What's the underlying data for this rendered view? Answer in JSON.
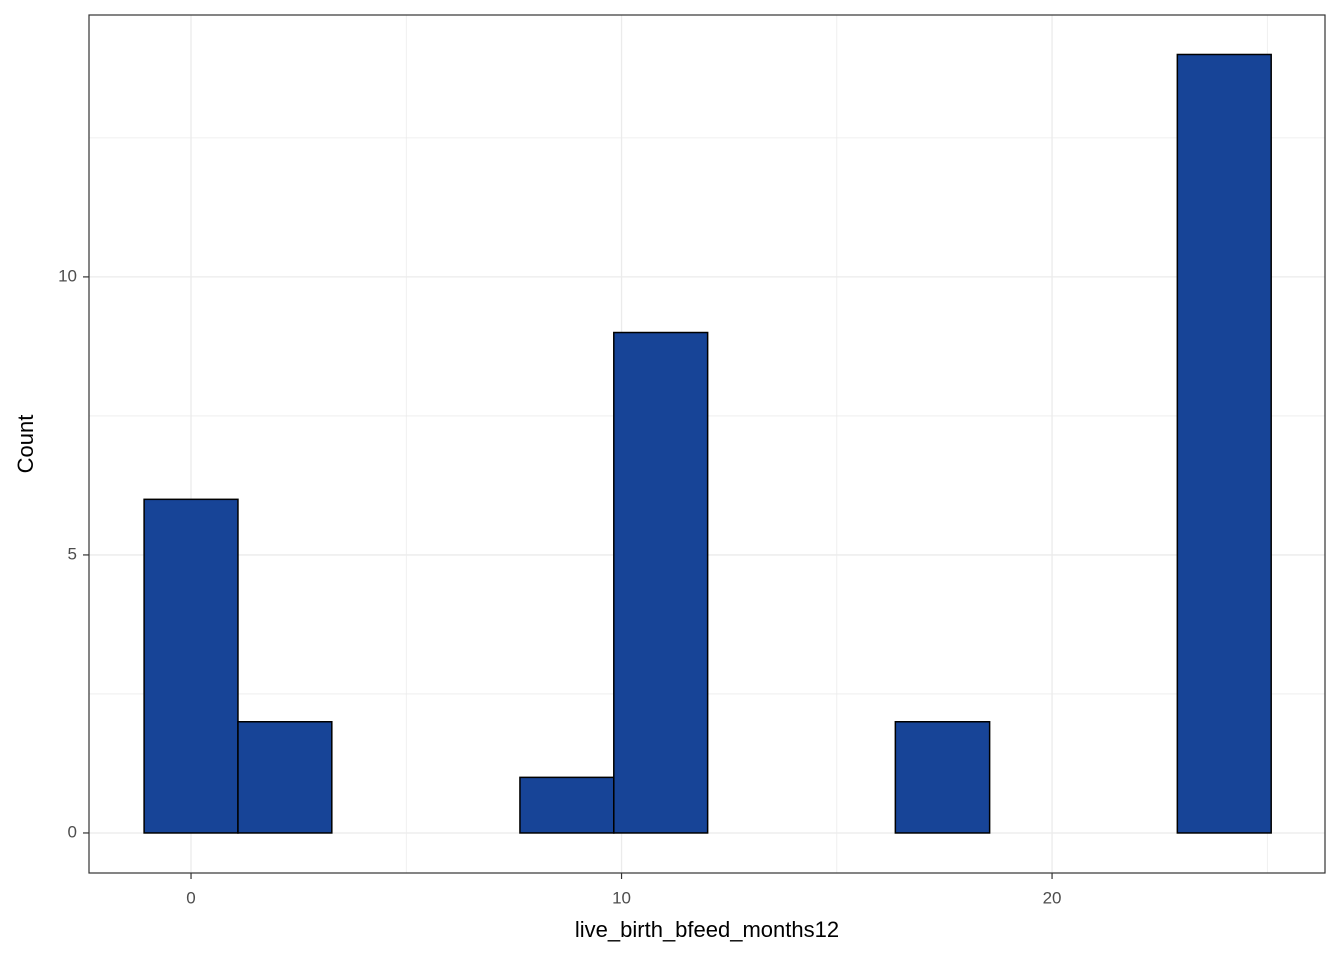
{
  "chart_data": {
    "type": "histogram",
    "x_label": "live_birth_bfeed_months12",
    "y_label": "Count",
    "bins": [
      -1.09,
      1.09,
      3.27,
      5.45,
      7.64,
      9.82,
      12,
      14.18,
      16.36,
      18.55,
      20.73,
      22.91,
      25.09
    ],
    "values": [
      6,
      2,
      0,
      0,
      1,
      9,
      0,
      0,
      2,
      0,
      0,
      14
    ],
    "color": "#174497",
    "xlim": [
      -2.37,
      26.34
    ],
    "ylim": [
      -0.72,
      14.71
    ],
    "xticks": [
      0,
      10,
      20
    ],
    "yticks": [
      0,
      5,
      10
    ],
    "x_minor_grid": [
      5,
      15,
      25
    ],
    "y_minor_grid": [
      2.5,
      7.5,
      12.5
    ],
    "grid": true
  }
}
